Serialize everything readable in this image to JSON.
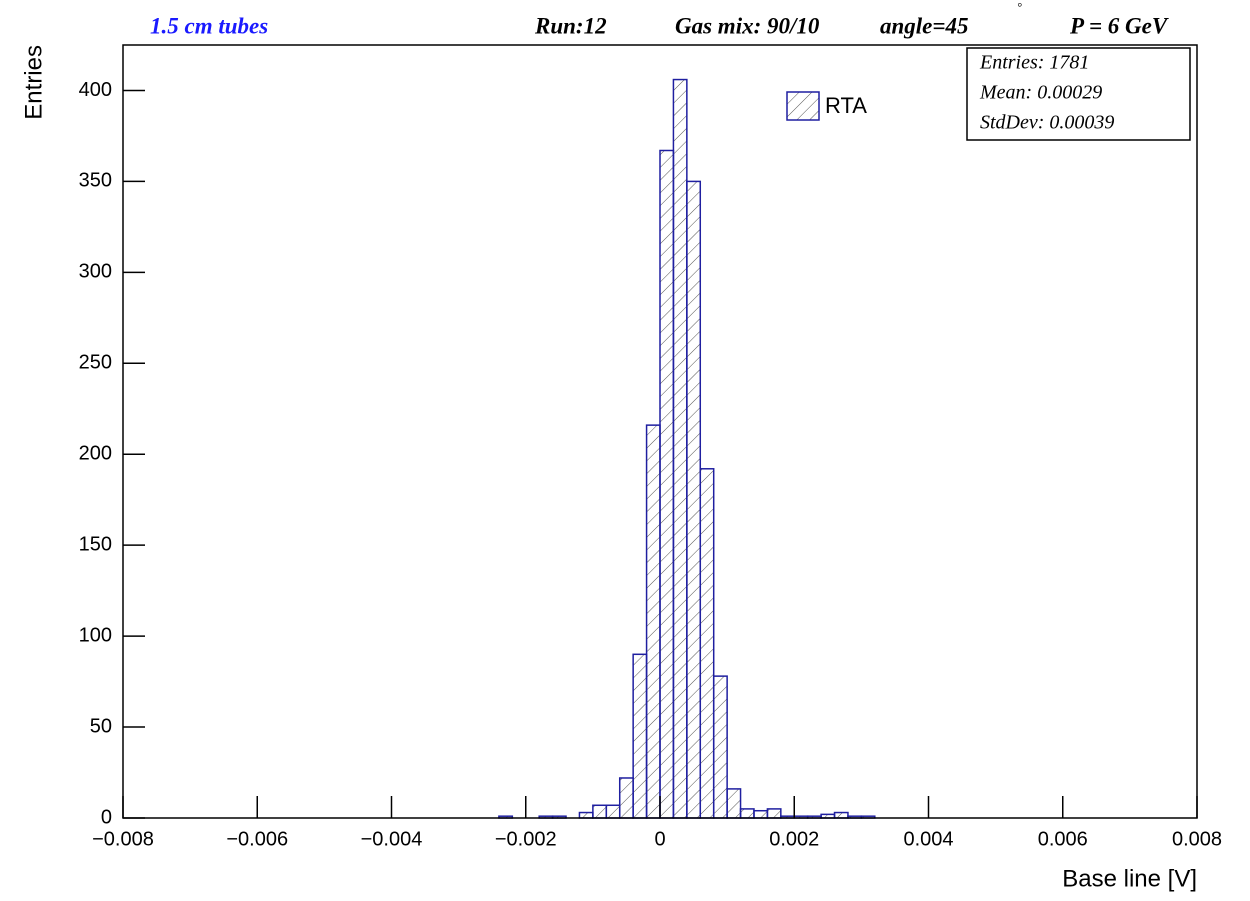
{
  "chart_data": {
    "type": "histogram",
    "title": "1.5 cm tubes",
    "annotations": [
      "Run:12",
      "Gas mix: 90/10",
      "angle=45",
      "°",
      "P = 6 GeV"
    ],
    "stats": [
      "Entries: 1781",
      "Mean: 0.00029",
      "StdDev: 0.00039"
    ],
    "x_label": "Base line [V]",
    "y_label": "Entries",
    "bins": [
      -0.0024,
      -0.0022,
      -0.002,
      -0.0018,
      -0.0016,
      -0.0014,
      -0.0012,
      -0.001,
      -0.0008,
      -0.0006,
      -0.0004,
      -0.0002,
      0,
      0.0002,
      0.0004,
      0.0006,
      0.0008,
      0.001,
      0.0012,
      0.0014,
      0.0016,
      0.0018,
      0.002,
      0.0022,
      0.0024,
      0.0026,
      0.0028,
      0.003,
      0.0032
    ],
    "series": [
      {
        "name": "RTA",
        "color": "#1f1fa0",
        "values": [
          1,
          0,
          0,
          1,
          1,
          0,
          3,
          7,
          7,
          22,
          90,
          216,
          367,
          406,
          350,
          192,
          78,
          16,
          5,
          4,
          5,
          1,
          1,
          1,
          2,
          3,
          1,
          1
        ]
      }
    ],
    "xlim": [
      -0.008,
      0.008
    ],
    "xticks": [
      {
        "value": -0.008,
        "label": "−0.008"
      },
      {
        "value": -0.006,
        "label": "−0.006"
      },
      {
        "value": -0.004,
        "label": "−0.004"
      },
      {
        "value": -0.002,
        "label": "−0.002"
      },
      0,
      0.002,
      0.004,
      0.006,
      0.008
    ],
    "ylim": [
      0,
      425
    ],
    "yticks": [
      0,
      50,
      100,
      150,
      200,
      250,
      300,
      350,
      400
    ],
    "grid": false
  }
}
